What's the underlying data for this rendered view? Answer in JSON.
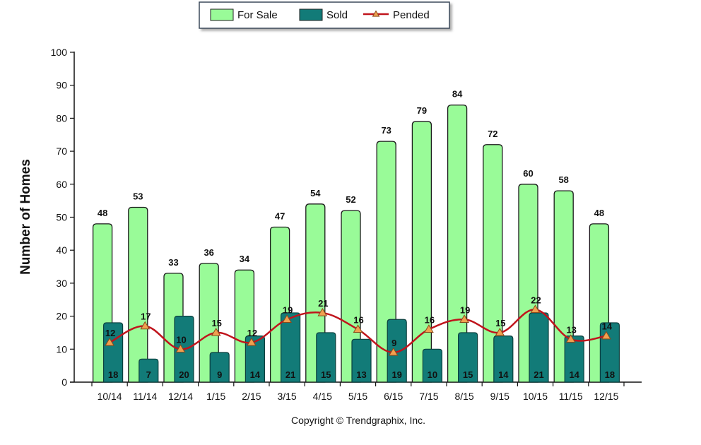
{
  "chart_data": {
    "type": "bar",
    "categories": [
      "10/14",
      "11/14",
      "12/14",
      "1/15",
      "2/15",
      "3/15",
      "4/15",
      "5/15",
      "6/15",
      "7/15",
      "8/15",
      "9/15",
      "10/15",
      "11/15",
      "12/15"
    ],
    "series": [
      {
        "name": "For Sale",
        "type": "bar",
        "color": "#99FB98",
        "values": [
          48,
          53,
          33,
          36,
          34,
          47,
          54,
          52,
          73,
          79,
          84,
          72,
          60,
          58,
          48
        ]
      },
      {
        "name": "Sold",
        "type": "bar",
        "color": "#127B78",
        "values": [
          18,
          7,
          20,
          9,
          14,
          21,
          15,
          13,
          19,
          10,
          15,
          14,
          21,
          14,
          18
        ]
      },
      {
        "name": "Pended",
        "type": "line",
        "color": "#C0141C",
        "marker_color": "#F0A050",
        "values": [
          12,
          17,
          10,
          15,
          12,
          19,
          21,
          16,
          9,
          16,
          19,
          15,
          22,
          13,
          14
        ]
      }
    ],
    "ylabel": "Number of Homes",
    "xlabel": "",
    "ylim": [
      0,
      100
    ],
    "yticks": [
      0,
      10,
      20,
      30,
      40,
      50,
      60,
      70,
      80,
      90,
      100
    ],
    "grid": false,
    "legend_position": "top-center"
  },
  "footer": {
    "copyright": "Copyright © Trendgraphix, Inc."
  }
}
